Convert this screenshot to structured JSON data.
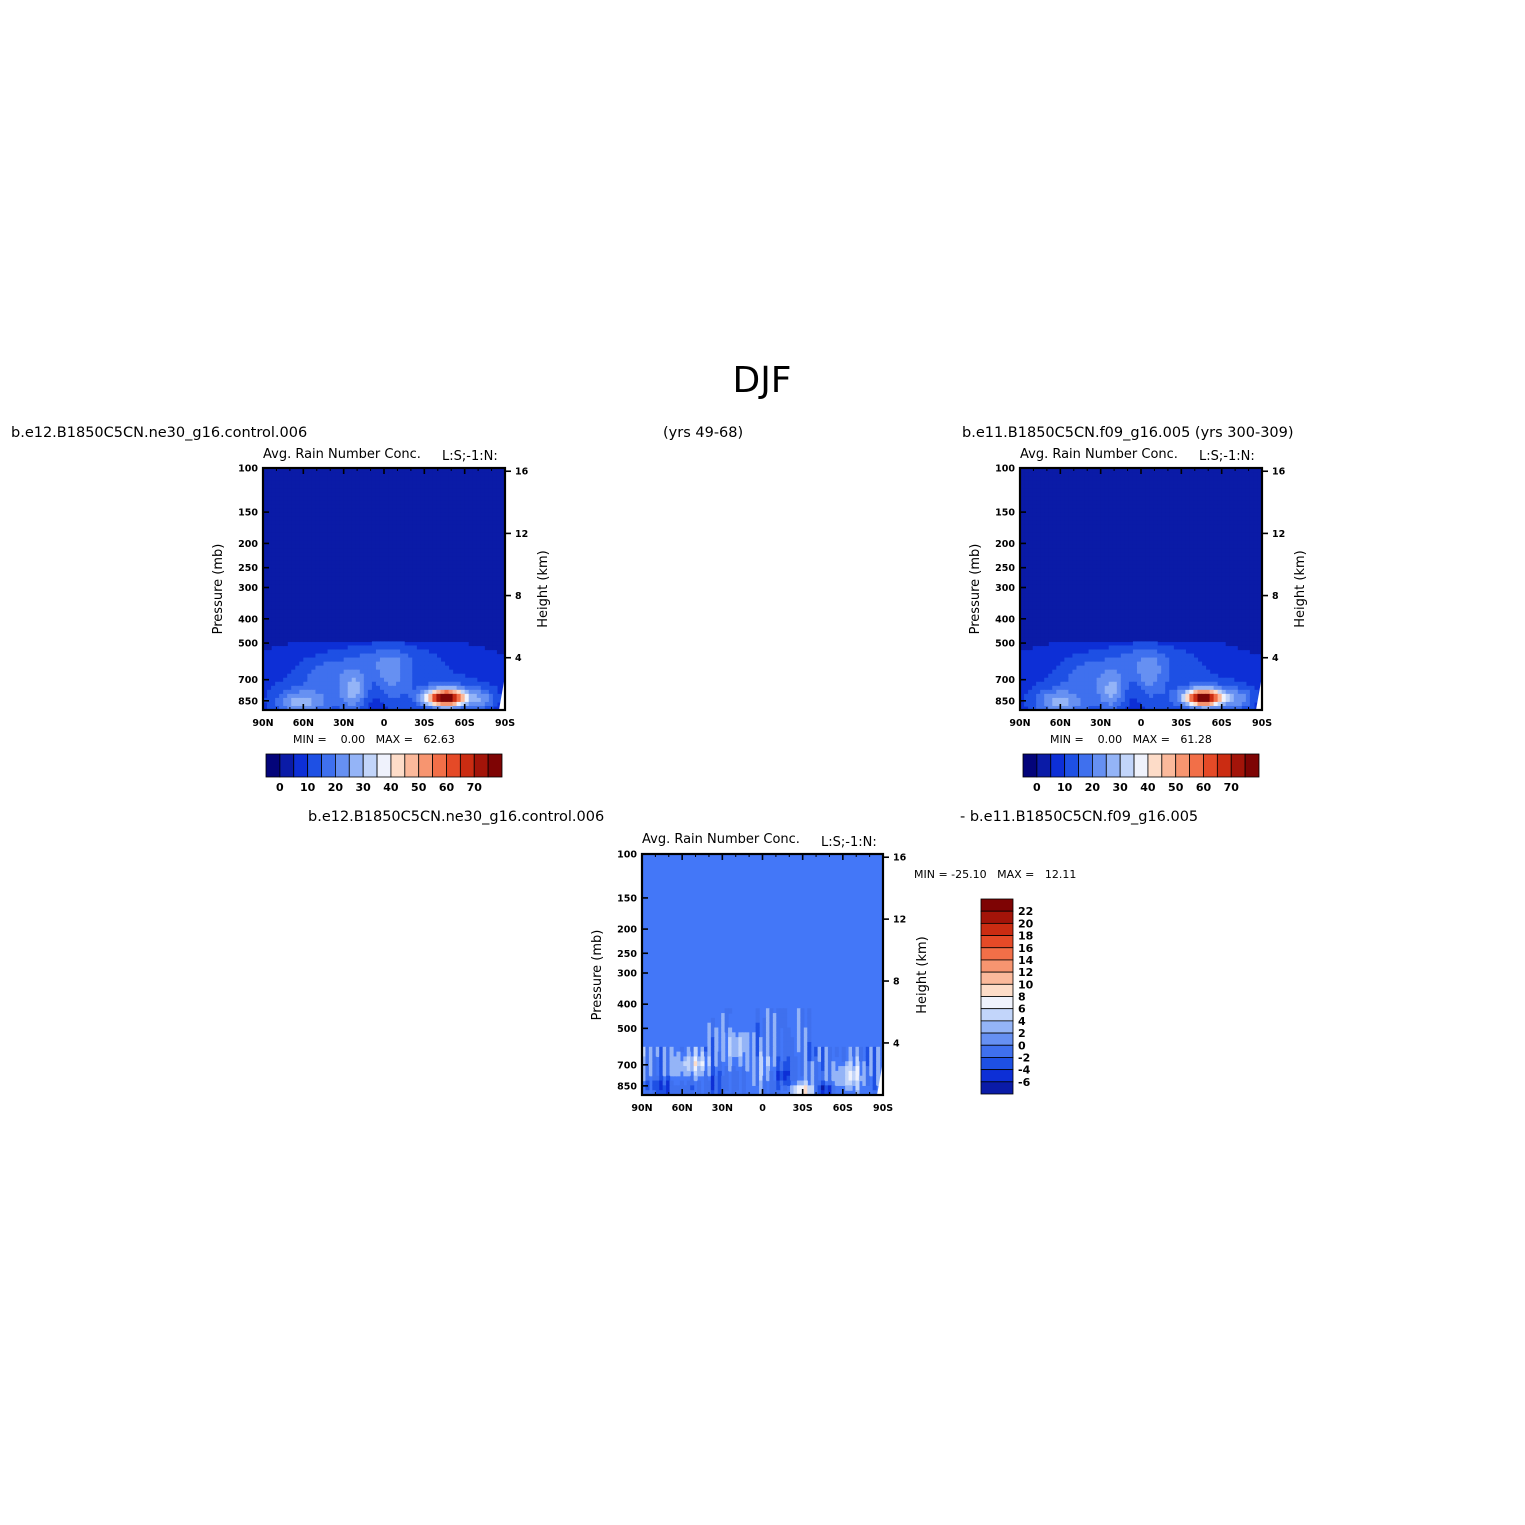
{
  "page": {
    "title": "DJF",
    "case1_label": "b.e12.B1850C5CN.ne30_g16.control.006",
    "case1_years": "(yrs 49-68)",
    "case2_label": "b.e11.B1850C5CN.f09_g16.005 (yrs 300-309)",
    "diff_label_left": "b.e12.B1850C5CN.ne30_g16.control.006",
    "diff_label_right": "- b.e11.B1850C5CN.f09_g16.005"
  },
  "chart_data": [
    {
      "type": "heatmap",
      "id": "panel1",
      "title": "Avg. Rain Number Conc.",
      "units": "L:S;-1:N:",
      "xlabel": "",
      "ylabel": "Pressure (mb)",
      "ylabel_right": "Height (km)",
      "x_ticks": [
        "90N",
        "60N",
        "30N",
        "0",
        "30S",
        "60S",
        "90S"
      ],
      "y_ticks": [
        "100",
        "150",
        "200",
        "250",
        "300",
        "400",
        "500",
        "700",
        "850"
      ],
      "y_ticks_right": [
        "16",
        "12",
        "8",
        "4"
      ],
      "ylim": [
        100,
        925
      ],
      "stats": "MIN =    0.00   MAX =   62.63",
      "min": 0.0,
      "max": 62.63,
      "colorbar": {
        "orientation": "horizontal",
        "labels": [
          "0",
          "10",
          "20",
          "30",
          "40",
          "50",
          "60",
          "70"
        ],
        "colors": [
          "#03047a",
          "#0a1ba7",
          "#0d2fd6",
          "#1e50e4",
          "#3f70ee",
          "#6690f2",
          "#94b4f7",
          "#c2d5fa",
          "#eff2fc",
          "#fddcc8",
          "#fbb99b",
          "#f79570",
          "#f26f48",
          "#e54a27",
          "#cb2c12",
          "#a31409",
          "#7e0404"
        ]
      },
      "features": [
        {
          "lat": -45,
          "p": 850,
          "value": 62.6
        },
        {
          "lat": 62,
          "p": 830,
          "value": 30
        },
        {
          "lat": 22,
          "p": 770,
          "value": 28
        },
        {
          "lat": 0,
          "p": 560,
          "value": 15
        }
      ]
    },
    {
      "type": "heatmap",
      "id": "panel2",
      "title": "Avg. Rain Number Conc.",
      "units": "L:S;-1:N:",
      "xlabel": "",
      "ylabel": "Pressure (mb)",
      "ylabel_right": "Height (km)",
      "x_ticks": [
        "90N",
        "60N",
        "30N",
        "0",
        "30S",
        "60S",
        "90S"
      ],
      "y_ticks": [
        "100",
        "150",
        "200",
        "250",
        "300",
        "400",
        "500",
        "700",
        "850"
      ],
      "y_ticks_right": [
        "16",
        "12",
        "8",
        "4"
      ],
      "ylim": [
        100,
        925
      ],
      "stats": "MIN =    0.00   MAX =   61.28",
      "min": 0.0,
      "max": 61.28,
      "colorbar": {
        "orientation": "horizontal",
        "labels": [
          "0",
          "10",
          "20",
          "30",
          "40",
          "50",
          "60",
          "70"
        ],
        "colors": [
          "#03047a",
          "#0a1ba7",
          "#0d2fd6",
          "#1e50e4",
          "#3f70ee",
          "#6690f2",
          "#94b4f7",
          "#c2d5fa",
          "#eff2fc",
          "#fddcc8",
          "#fbb99b",
          "#f79570",
          "#f26f48",
          "#e54a27",
          "#cb2c12",
          "#a31409",
          "#7e0404"
        ]
      },
      "features": [
        {
          "lat": -45,
          "p": 840,
          "value": 61.3
        },
        {
          "lat": 62,
          "p": 830,
          "value": 30
        },
        {
          "lat": 22,
          "p": 770,
          "value": 28
        },
        {
          "lat": 0,
          "p": 560,
          "value": 15
        }
      ]
    },
    {
      "type": "heatmap",
      "id": "panel3",
      "title": "Avg. Rain Number Conc.",
      "units": "L:S;-1:N:",
      "xlabel": "",
      "ylabel": "Pressure (mb)",
      "ylabel_right": "Height (km)",
      "x_ticks": [
        "90N",
        "60N",
        "30N",
        "0",
        "30S",
        "60S",
        "90S"
      ],
      "y_ticks": [
        "100",
        "150",
        "200",
        "250",
        "300",
        "400",
        "500",
        "700",
        "850"
      ],
      "y_ticks_right": [
        "16",
        "12",
        "8",
        "4"
      ],
      "ylim": [
        100,
        925
      ],
      "stats": "MIN = -25.10   MAX =   12.11",
      "min": -25.1,
      "max": 12.11,
      "colorbar": {
        "orientation": "vertical",
        "labels": [
          "22",
          "20",
          "18",
          "16",
          "14",
          "12",
          "10",
          "8",
          "6",
          "4",
          "2",
          "0",
          "-2",
          "-4",
          "-6"
        ],
        "colors": [
          "#7e0404",
          "#a31409",
          "#cb2c12",
          "#e54a27",
          "#f26f48",
          "#f79570",
          "#fbb99b",
          "#fddcc8",
          "#eff2fc",
          "#c2d5fa",
          "#94b4f7",
          "#6690f2",
          "#3f70ee",
          "#1e50e4",
          "#0d2fd6",
          "#0a1ba7"
        ]
      }
    }
  ]
}
